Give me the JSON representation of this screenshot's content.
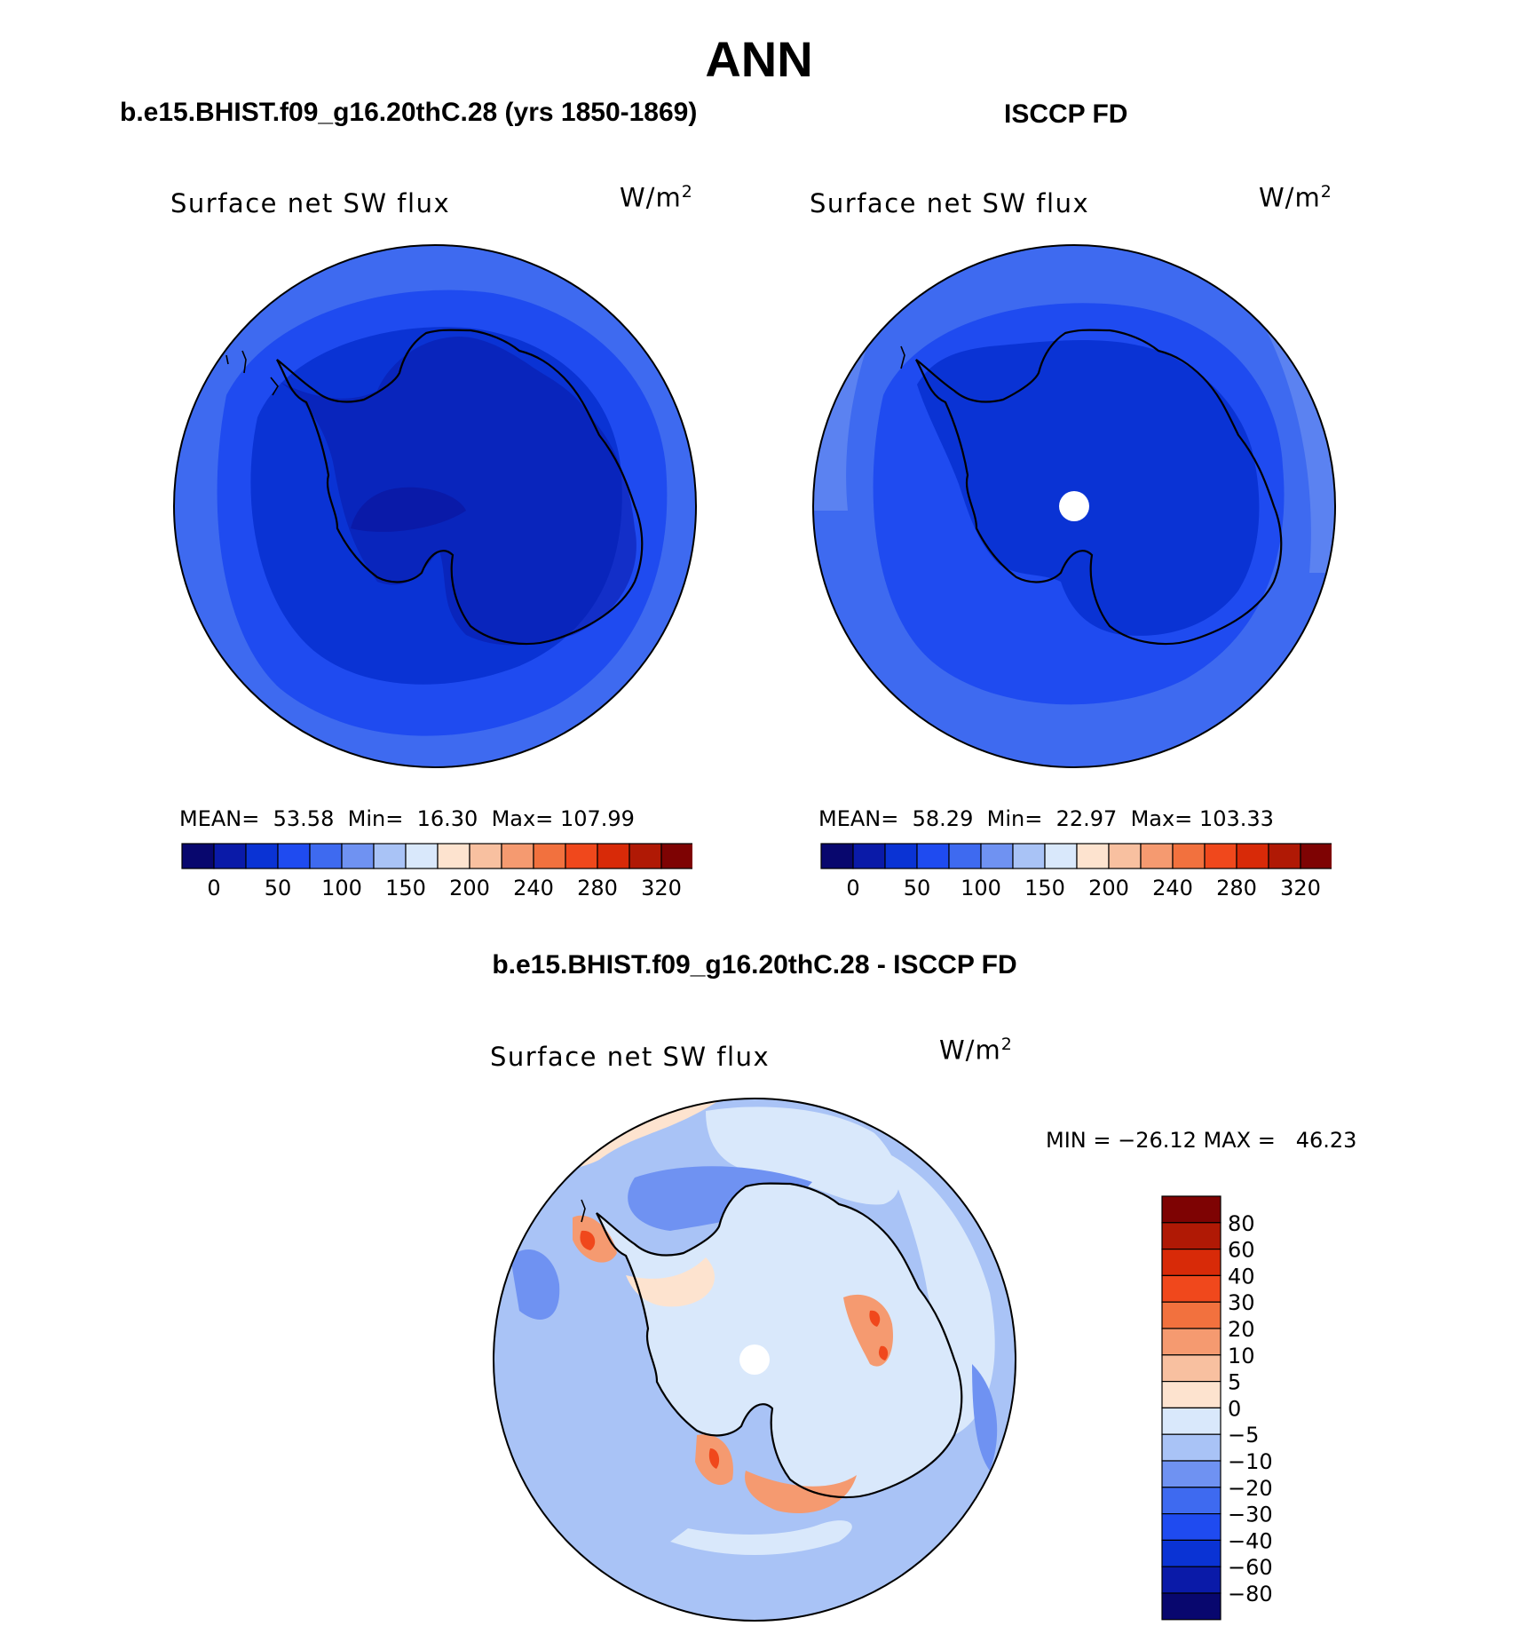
{
  "title": "ANN",
  "panels": [
    {
      "title": "b.e15.BHIST.f09_g16.20thC.28 (yrs 1850-1869)",
      "variable": "Surface net SW flux",
      "units": "W/m",
      "units_sup": "2",
      "stats": {
        "mean_label": "MEAN=",
        "mean": "53.58",
        "min_label": "Min=",
        "min": "16.30",
        "max_label": "Max=",
        "max": "107.99"
      }
    },
    {
      "title": "ISCCP FD",
      "variable": "Surface net SW flux",
      "units": "W/m",
      "units_sup": "2",
      "stats": {
        "mean_label": "MEAN=",
        "mean": "58.29",
        "min_label": "Min=",
        "min": "22.97",
        "max_label": "Max=",
        "max": "103.33"
      }
    },
    {
      "title": "b.e15.BHIST.f09_g16.20thC.28 - ISCCP FD",
      "variable": "Surface net SW flux",
      "units": "W/m",
      "units_sup": "2",
      "stats_text": "MIN = −26.12 MAX =   46.23"
    }
  ],
  "abs_colorbar": {
    "tick_labels": [
      "0",
      "50",
      "100",
      "150",
      "200",
      "240",
      "280",
      "320"
    ],
    "colors": [
      "#08076e",
      "#0a1aa8",
      "#0a33d4",
      "#1f4bf0",
      "#3e6af0",
      "#6f92f2",
      "#a9c3f6",
      "#d9e8fb",
      "#fde3cf",
      "#f8c0a0",
      "#f59a70",
      "#f2713e",
      "#f0481c",
      "#d82a08",
      "#b01905",
      "#7e0303"
    ]
  },
  "diff_colorbar": {
    "tick_labels": [
      "80",
      "60",
      "40",
      "30",
      "20",
      "10",
      "5",
      "0",
      "−5",
      "−10",
      "−20",
      "−30",
      "−40",
      "−60",
      "−80"
    ],
    "colors": [
      "#7e0303",
      "#b01905",
      "#d82a08",
      "#f0481c",
      "#f2713e",
      "#f59a70",
      "#f8c0a0",
      "#fde3cf",
      "#d9e8fb",
      "#a9c3f6",
      "#6f92f2",
      "#3e6af0",
      "#1f4bf0",
      "#0a33d4",
      "#0a1aa8",
      "#08076e"
    ]
  },
  "map_colors": {
    "ocean_outer": "#3e6af0",
    "ocean_mid": "#1f4bf0",
    "ocean_inner": "#0a33d4",
    "land_interior": "#0a33d4",
    "diff_base": "#a9c3f6",
    "diff_light": "#d9e8fb",
    "diff_mid": "#6f92f2",
    "diff_pos_light": "#fde3cf",
    "diff_pos": "#f59a70",
    "diff_pos_strong": "#f0481c"
  }
}
